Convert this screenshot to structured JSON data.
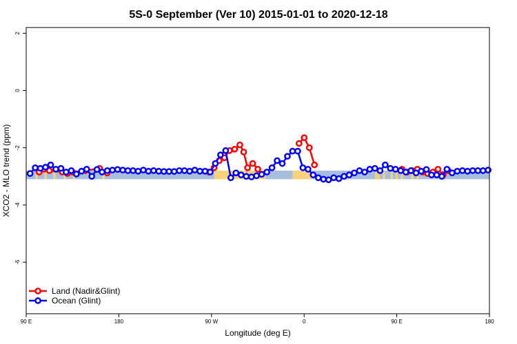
{
  "chart_data": {
    "type": "line",
    "title": "5S-0 September (Ver 10)   2015-01-01 to 2020-12-18",
    "xlabel": "Longitude (deg E)",
    "ylabel": "XCO2 - MLO trend (ppm)",
    "xlim": [
      90,
      450
    ],
    "ylim": [
      -7.8,
      2.2
    ],
    "x_ticks": [
      90,
      162,
      234,
      306,
      378,
      450
    ],
    "x_tick_labels": [
      "90 E",
      "180",
      "90 W",
      "0",
      "90 E",
      "180"
    ],
    "y_ticks": [
      -6,
      -4,
      -2,
      0,
      2
    ],
    "y_tick_labels": [
      "-6",
      "-4",
      "-2",
      "0",
      "2"
    ],
    "grid": false,
    "legend_position": "bottom-left",
    "colors": {
      "land": "#ff0000",
      "ocean": "#0000ff",
      "land_band": "#f6d27a",
      "ocean_band": "#a7bedc"
    },
    "surface_band": {
      "y_range": [
        -3.1,
        -2.8
      ],
      "land_ranges": [
        [
          236,
          261
        ],
        [
          262,
          276
        ],
        [
          297,
          312
        ]
      ],
      "land_spots": [
        98,
        105,
        112,
        120,
        127,
        150,
        362,
        364,
        368,
        374,
        378,
        382,
        390,
        394
      ]
    },
    "series": [
      {
        "name": "Land (Nadir&Glint)",
        "color": "#ff0000",
        "x": [
          100,
          104,
          108,
          118,
          122,
          126,
          136,
          147,
          153,
          232,
          236,
          240,
          244,
          248,
          252,
          256,
          259,
          262,
          266,
          270,
          302,
          306,
          310,
          314,
          382,
          386,
          390,
          394,
          398,
          402,
          406,
          410,
          414,
          418
        ],
        "y": [
          -2.85,
          -2.75,
          -2.8,
          -2.85,
          -2.9,
          -2.85,
          -2.8,
          -2.72,
          -2.88,
          -2.85,
          -2.7,
          -2.45,
          -2.35,
          -2.1,
          -2.05,
          -1.9,
          -2.15,
          -2.7,
          -2.55,
          -2.75,
          -1.85,
          -1.65,
          -2.0,
          -2.6,
          -2.75,
          -2.85,
          -2.8,
          -2.75,
          -2.85,
          -2.9,
          -2.85,
          -2.75,
          -2.95,
          -2.8
        ]
      },
      {
        "name": "Ocean (Glint)",
        "color": "#0000ff",
        "x": [
          93,
          97,
          101,
          105,
          109,
          113,
          117,
          121,
          125,
          129,
          133,
          137,
          141,
          145,
          149,
          153,
          157,
          161,
          165,
          169,
          173,
          177,
          181,
          185,
          189,
          193,
          197,
          201,
          205,
          209,
          213,
          217,
          221,
          225,
          229,
          233,
          237,
          241,
          245,
          249,
          253,
          257,
          261,
          265,
          269,
          273,
          277,
          281,
          285,
          289,
          293,
          297,
          301,
          305,
          309,
          313,
          317,
          321,
          325,
          329,
          333,
          337,
          341,
          345,
          349,
          353,
          357,
          361,
          365,
          369,
          373,
          377,
          381,
          385,
          389,
          393,
          397,
          401,
          405,
          409,
          413,
          417,
          421,
          425,
          429,
          433,
          437,
          441,
          445,
          449
        ],
        "y": [
          -2.9,
          -2.7,
          -2.72,
          -2.68,
          -2.6,
          -2.75,
          -2.72,
          -2.85,
          -2.8,
          -2.92,
          -2.82,
          -2.75,
          -3.0,
          -2.76,
          -2.85,
          -2.8,
          -2.78,
          -2.76,
          -2.78,
          -2.8,
          -2.8,
          -2.82,
          -2.78,
          -2.82,
          -2.8,
          -2.82,
          -2.83,
          -2.83,
          -2.83,
          -2.8,
          -2.8,
          -2.82,
          -2.78,
          -2.82,
          -2.82,
          -2.85,
          -2.55,
          -2.25,
          -2.1,
          -3.05,
          -2.88,
          -2.95,
          -3.0,
          -3.02,
          -2.98,
          -2.93,
          -2.85,
          -2.7,
          -2.45,
          -2.55,
          -2.3,
          -2.12,
          -2.12,
          -2.7,
          -2.75,
          -2.95,
          -3.05,
          -3.1,
          -3.12,
          -3.05,
          -3.08,
          -3.0,
          -2.95,
          -2.88,
          -2.8,
          -2.85,
          -2.75,
          -2.72,
          -2.8,
          -2.6,
          -2.72,
          -2.75,
          -2.8,
          -2.85,
          -2.8,
          -2.88,
          -2.82,
          -2.76,
          -2.95,
          -2.95,
          -3.0,
          -2.75,
          -2.88,
          -2.82,
          -2.8,
          -2.82,
          -2.8,
          -2.8,
          -2.8,
          -2.78
        ]
      }
    ]
  }
}
